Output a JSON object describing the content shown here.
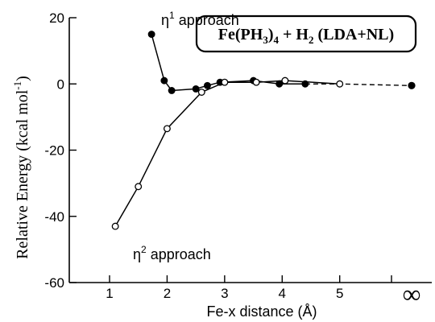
{
  "chart_data": {
    "type": "line",
    "title_parts": [
      "Fe(PH",
      "3",
      ")",
      "4",
      " + H",
      "2",
      " (LDA+NL)"
    ],
    "xlabel": "Fe-x distance (Å)",
    "ylabel_main": "Relative Energy (kcal mol",
    "ylabel_sup": "-1",
    "ylabel_close": ")",
    "xlim": [
      0.3,
      6.6
    ],
    "ylim": [
      -60,
      20
    ],
    "x_ticks": [
      1,
      2,
      3,
      4,
      5
    ],
    "x_tick_labels": [
      "1",
      "2",
      "3",
      "4",
      "5"
    ],
    "x_minor_ticks": [
      5.9
    ],
    "x_inf_label": "∞",
    "x_inf_position": 6.25,
    "y_ticks": [
      20,
      0,
      -20,
      -40,
      -60
    ],
    "y_tick_labels": [
      "20",
      "0",
      "-20",
      "-40",
      "-60"
    ],
    "series": [
      {
        "name_prefix": "η",
        "name_sup": "1",
        "name_rest": " approach",
        "marker": "filled",
        "line_style": "solid",
        "x": [
          1.73,
          1.95,
          2.08,
          2.5,
          2.7,
          2.92,
          3.5,
          3.95,
          4.4
        ],
        "y": [
          15.0,
          1.0,
          -2.0,
          -1.5,
          -0.5,
          0.5,
          1.0,
          0.0,
          0.0
        ]
      },
      {
        "name_prefix": "η",
        "name_sup": "2",
        "name_rest": " approach",
        "marker": "open",
        "line_style": "solid",
        "x": [
          1.1,
          1.5,
          2.0,
          2.6,
          3.0,
          3.55,
          4.05,
          5.0
        ],
        "y": [
          -43.0,
          -31.0,
          -13.5,
          -2.5,
          0.5,
          0.5,
          1.0,
          0.0
        ]
      }
    ],
    "dashed_extension": {
      "x": [
        4.4,
        5.0,
        6.25
      ],
      "y": [
        0.0,
        0.0,
        -0.5
      ]
    },
    "inf_point": {
      "x": 6.25,
      "y": -0.5
    }
  }
}
